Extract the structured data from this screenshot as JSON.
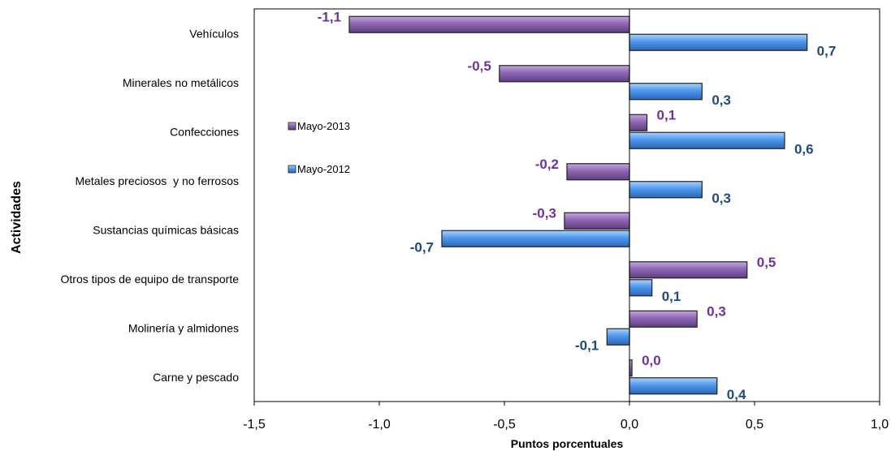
{
  "chart_data": {
    "type": "bar",
    "orientation": "horizontal",
    "categories": [
      "Vehículos",
      "Minerales no metálicos",
      "Confecciones",
      "Metales preciosos  y no ferrosos",
      "Sustancias químicas básicas",
      "Otros tipos de equipo de transporte",
      "Molinería y almidones",
      "Carne y pescado"
    ],
    "series": [
      {
        "name": "Mayo-2013",
        "color": "#7E5A9E",
        "values": [
          -1.12,
          -0.52,
          0.07,
          -0.25,
          -0.26,
          0.47,
          0.27,
          0.01
        ],
        "labels": [
          "-1,1",
          "-0,5",
          "0,1",
          "-0,2",
          "-0,3",
          "0,5",
          "0,3",
          "0,0"
        ],
        "label_color": "#7030A0"
      },
      {
        "name": "Mayo-2012",
        "color": "#4A90E2",
        "values": [
          0.71,
          0.29,
          0.62,
          0.29,
          -0.75,
          0.09,
          -0.09,
          0.35
        ],
        "labels": [
          "0,7",
          "0,3",
          "0,6",
          "0,3",
          "-0,7",
          "0,1",
          "-0,1",
          "0,4"
        ],
        "label_color": "#1F497D"
      }
    ],
    "xlabel": "Puntos porcentuales",
    "ylabel": "Actividades",
    "xlim": [
      -1.5,
      1.0
    ],
    "xticks": [
      -1.5,
      -1.0,
      -0.5,
      0.0,
      0.5,
      1.0
    ],
    "xtick_labels": [
      "-1,5",
      "-1,0",
      "-0,5",
      "0,0",
      "0,5",
      "1,0"
    ],
    "grid": false,
    "legend_position": "left"
  }
}
